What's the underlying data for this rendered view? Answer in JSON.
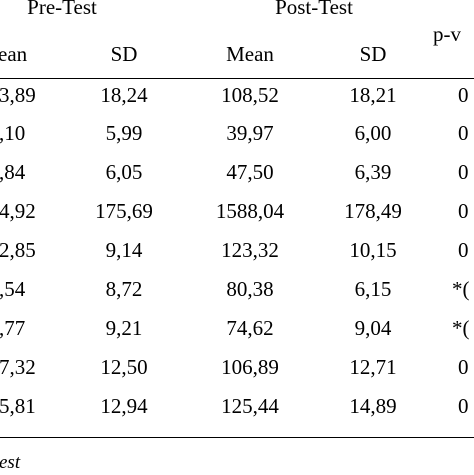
{
  "header": {
    "group_pre": "Pre-Test",
    "group_post": "Post-Test",
    "p_value": "p-v",
    "pre_mean": "ean",
    "pre_sd": "SD",
    "post_mean": "Mean",
    "post_sd": "SD"
  },
  "rows": [
    {
      "pre_mean": "3,89",
      "pre_sd": "18,24",
      "post_mean": "108,52",
      "post_sd": "18,21",
      "p": "0"
    },
    {
      "pre_mean": ",10",
      "pre_sd": "5,99",
      "post_mean": "39,97",
      "post_sd": "6,00",
      "p": "0"
    },
    {
      "pre_mean": ",84",
      "pre_sd": "6,05",
      "post_mean": "47,50",
      "post_sd": "6,39",
      "p": "0"
    },
    {
      "pre_mean": "4,92",
      "pre_sd": "175,69",
      "post_mean": "1588,04",
      "post_sd": "178,49",
      "p": "0"
    },
    {
      "pre_mean": "2,85",
      "pre_sd": "9,14",
      "post_mean": "123,32",
      "post_sd": "10,15",
      "p": "0"
    },
    {
      "pre_mean": ",54",
      "pre_sd": "8,72",
      "post_mean": "80,38",
      "post_sd": "6,15",
      "p": "*("
    },
    {
      "pre_mean": ",77",
      "pre_sd": "9,21",
      "post_mean": "74,62",
      "post_sd": "9,04",
      "p": "*("
    },
    {
      "pre_mean": "7,32",
      "pre_sd": "12,50",
      "post_mean": "106,89",
      "post_sd": "12,71",
      "p": "0"
    },
    {
      "pre_mean": "5,81",
      "pre_sd": "12,94",
      "post_mean": "125,44",
      "post_sd": "14,89",
      "p": "0"
    }
  ],
  "footnote": "est"
}
